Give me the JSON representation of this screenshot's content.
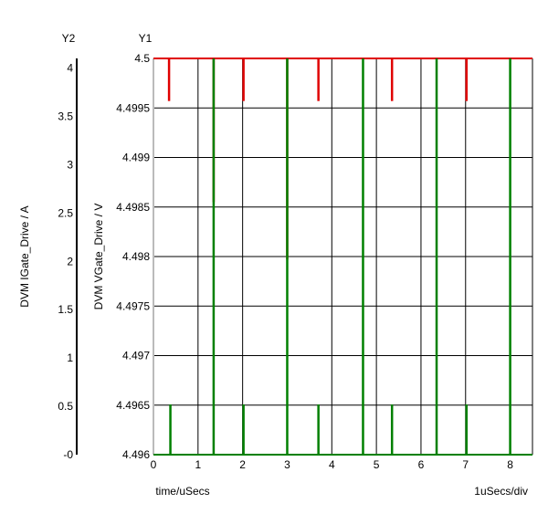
{
  "chart_data": {
    "type": "line",
    "xlabel": "time/uSecs",
    "x_scale_note": "1uSecs/div",
    "x_range": [
      0,
      8.5
    ],
    "x_ticks": [
      "0",
      "1",
      "2",
      "3",
      "4",
      "5",
      "6",
      "7",
      "8"
    ],
    "y1": {
      "axis_name": "Y1",
      "label": "DVM VGate_Drive / V",
      "range": [
        4.496,
        4.5
      ],
      "ticks": [
        "4.496",
        "4.4965",
        "4.497",
        "4.4975",
        "4.498",
        "4.4985",
        "4.499",
        "4.4995",
        "4.5"
      ]
    },
    "y2": {
      "axis_name": "Y2",
      "label": "DVM IGate_Drive / A",
      "range": [
        0,
        4.1
      ],
      "ticks": [
        "-0",
        "0.5",
        "1",
        "1.5",
        "2",
        "2.5",
        "3",
        "3.5",
        "4"
      ]
    },
    "grid": true,
    "series": [
      {
        "color": "#e00000",
        "axis": "y1",
        "baseline": 4.5,
        "spikes": [
          {
            "x": 0.35,
            "y": 4.49957
          },
          {
            "x": 1.35,
            "y": 4.49855
          },
          {
            "x": 2.02,
            "y": 4.49957
          },
          {
            "x": 3.0,
            "y": 4.49797
          },
          {
            "x": 3.7,
            "y": 4.49957
          },
          {
            "x": 5.35,
            "y": 4.49957
          },
          {
            "x": 7.02,
            "y": 4.49957
          }
        ]
      },
      {
        "color": "#008000",
        "axis": "y2",
        "baseline": 0,
        "spikes": [
          {
            "x": 0.38,
            "y": 0.52
          },
          {
            "x": 1.35,
            "y": 4.1
          },
          {
            "x": 2.02,
            "y": 0.52
          },
          {
            "x": 3.0,
            "y": 4.1
          },
          {
            "x": 3.7,
            "y": 0.52
          },
          {
            "x": 4.7,
            "y": 4.1
          },
          {
            "x": 5.35,
            "y": 0.52
          },
          {
            "x": 6.35,
            "y": 4.1
          },
          {
            "x": 7.02,
            "y": 0.52
          },
          {
            "x": 8.0,
            "y": 4.1
          }
        ]
      }
    ]
  }
}
